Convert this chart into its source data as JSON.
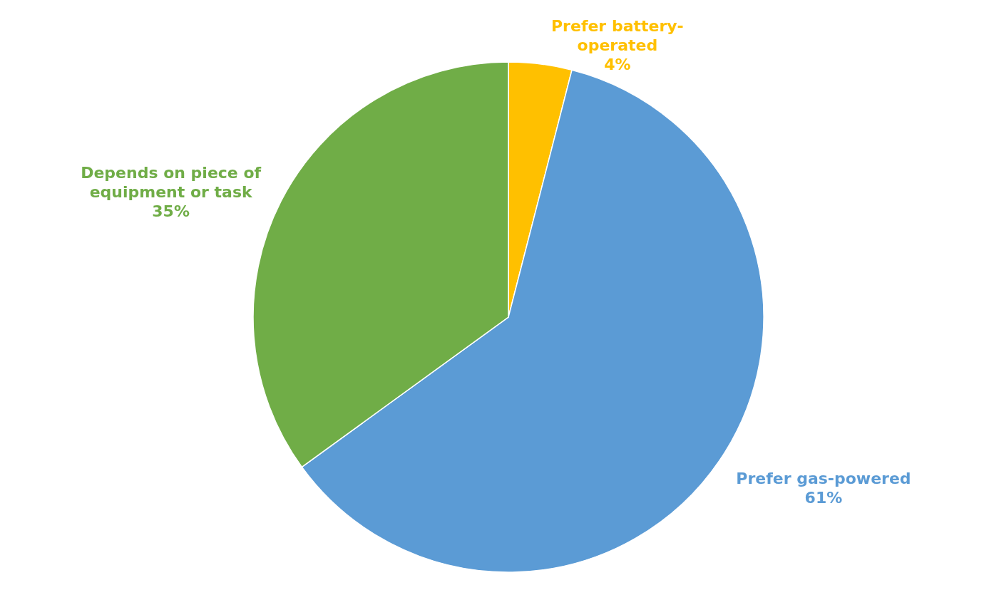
{
  "chart_data": {
    "type": "pie",
    "categories": [
      "Prefer battery-operated",
      "Prefer gas-powered",
      "Depends on piece of equipment or task"
    ],
    "values": [
      4,
      61,
      35
    ],
    "value_labels": [
      "4%",
      "61%",
      "35%"
    ],
    "colors": [
      "#ffc000",
      "#5b9bd5",
      "#70ad47"
    ],
    "legend": false
  }
}
